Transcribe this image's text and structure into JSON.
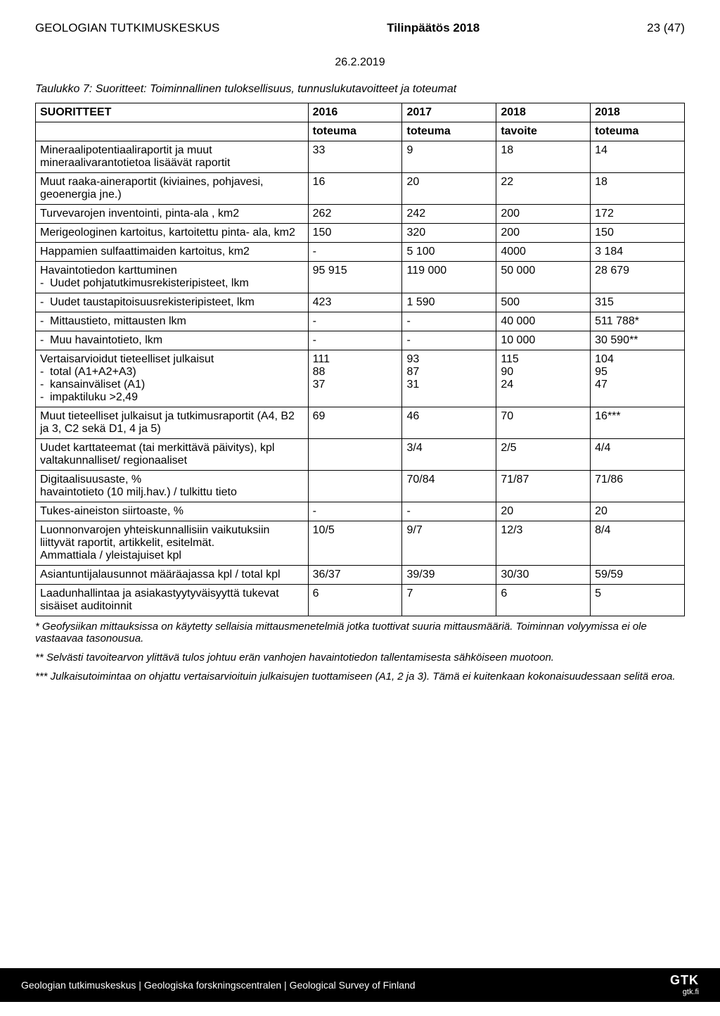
{
  "header": {
    "org": "GEOLOGIAN TUTKIMUSKESKUS",
    "title": "Tilinpäätös 2018",
    "page": "23 (47)",
    "date": "26.2.2019"
  },
  "caption": "Taulukko 7: Suoritteet: Toiminnallinen tuloksellisuus, tunnuslukutavoitteet ja toteumat",
  "table": {
    "columns": [
      "SUORITTEET",
      "2016",
      "2017",
      "2018",
      "2018"
    ],
    "subheader": [
      "",
      "toteuma",
      "toteuma",
      "tavoite",
      "toteuma"
    ],
    "rows": [
      {
        "label": "Mineraalipotentiaaliraportit ja muut mineraalivarantotietoa lisäävät raportit",
        "c1": "33",
        "c2": "9",
        "c3": "18",
        "c4": "14"
      },
      {
        "label": "Muut raaka-aineraportit (kiviaines, pohjavesi, geoenergia jne.)",
        "c1": "16",
        "c2": "20",
        "c3": "22",
        "c4": "18"
      },
      {
        "label": "Turvevarojen inventointi, pinta-ala , km2",
        "c1": "262",
        "c2": "242",
        "c3": "200",
        "c4": "172"
      },
      {
        "label": "Merigeologinen kartoitus, kartoitettu pinta- ala, km2",
        "c1": "150",
        "c2": "320",
        "c3": "200",
        "c4": "150"
      },
      {
        "label": "Happamien sulfaattimaiden kartoitus, km2",
        "c1": "-",
        "c2": "5 100",
        "c3": "4000",
        "c4": "3 184"
      },
      {
        "label": "Havaintotiedon karttuminen",
        "sub": [
          {
            "label": "Uudet pohjatutkimusrekisteripisteet, lkm"
          }
        ],
        "c1": "95 915",
        "c2": "119 000",
        "c3": "50 000",
        "c4": "28 679"
      },
      {
        "sub": [
          {
            "label": "Uudet taustapitoisuusrekisteripisteet, lkm"
          }
        ],
        "c1": "423",
        "c2": "1 590",
        "c3": "500",
        "c4": "315"
      },
      {
        "sub": [
          {
            "label": "Mittaustieto, mittausten lkm"
          }
        ],
        "c1": "-",
        "c2": "-",
        "c3": "40 000",
        "c4": "511 788*"
      },
      {
        "sub": [
          {
            "label": "Muu havaintotieto, lkm"
          }
        ],
        "c1": "-",
        "c2": "-",
        "c3": "10 000",
        "c4": "30 590**"
      },
      {
        "label": "Vertaisarvioidut tieteelliset julkaisut",
        "sub": [
          {
            "label": "total (A1+A2+A3)"
          },
          {
            "label": "kansainväliset (A1)"
          },
          {
            "label": "impaktiluku >2,49"
          }
        ],
        "c1": "111\n88\n37",
        "c2": "93\n87\n31",
        "c3": "115\n90\n24",
        "c4": "104\n95\n47"
      },
      {
        "label": "Muut tieteelliset julkaisut ja tutkimusraportit (A4, B2 ja 3, C2 sekä D1, 4 ja 5)",
        "c1": "69",
        "c2": "46",
        "c3": "70",
        "c4": "16***"
      },
      {
        "label": "Uudet karttateemat (tai merkittävä päivitys), kpl\nvaltakunnalliset/ regionaaliset",
        "c1": "",
        "c2": "3/4",
        "c3": "2/5",
        "c4": "4/4"
      },
      {
        "label": "Digitaalisuusaste, %\nhavaintotieto (10 milj.hav.) / tulkittu tieto",
        "c1": "",
        "c2": "70/84",
        "c3": "71/87",
        "c4": "71/86"
      },
      {
        "label": "Tukes-aineiston siirtoaste, %",
        "c1": "-",
        "c2": "-",
        "c3": "20",
        "c4": "20"
      },
      {
        "label": "Luonnonvarojen yhteiskunnallisiin vaikutuksiin liittyvät raportit, artikkelit, esitelmät.\nAmmattiala / yleistajuiset kpl",
        "c1": "10/5",
        "c2": "9/7",
        "c3": "12/3",
        "c4": "8/4"
      },
      {
        "label": "Asiantuntijalausunnot määräajassa kpl / total kpl",
        "c1": "36/37",
        "c2": "39/39",
        "c3": "30/30",
        "c4": "59/59"
      },
      {
        "label": "Laadunhallintaa ja asiakastyytyväisyyttä tukevat sisäiset auditoinnit",
        "c1": "6",
        "c2": "7",
        "c3": "6",
        "c4": "5"
      }
    ]
  },
  "footnotes": [
    "* Geofysiikan mittauksissa on käytetty sellaisia mittausmenetelmiä jotka tuottivat suuria mittausmääriä. Toiminnan volyymissa ei ole vastaavaa tasonousua.",
    "** Selvästi tavoitearvon ylittävä tulos johtuu erän vanhojen havaintotiedon tallentamisesta sähköiseen muotoon.",
    "*** Julkaisutoimintaa on ohjattu vertaisarvioituin julkaisujen tuottamiseen (A1, 2 ja 3). Tämä ei kuitenkaan kokonaisuudessaan selitä eroa."
  ],
  "footer": {
    "text": "Geologian tutkimuskeskus | Geologiska forskningscentralen | Geological Survey of Finland",
    "logo": "GTK",
    "url": "gtk.fi"
  }
}
